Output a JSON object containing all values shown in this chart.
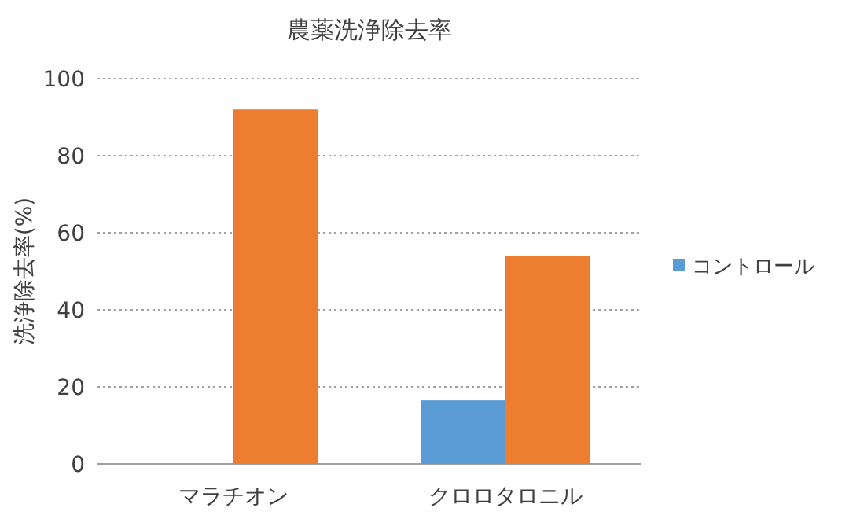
{
  "chart_data": {
    "type": "bar",
    "title": "農薬洗浄除去率",
    "ylabel": "洗浄除去率(%)",
    "categories": [
      "マラチオン",
      "クロロタロニル"
    ],
    "series": [
      {
        "name": "コントロール",
        "color": "#5b9bd5",
        "values": [
          0,
          16.5
        ]
      },
      {
        "color": "#ed7d31",
        "values": [
          92,
          54
        ]
      }
    ],
    "ylim": [
      0,
      100
    ],
    "yticks": [
      0,
      20,
      40,
      60,
      80,
      100
    ],
    "grid": "y",
    "legend": "right"
  }
}
